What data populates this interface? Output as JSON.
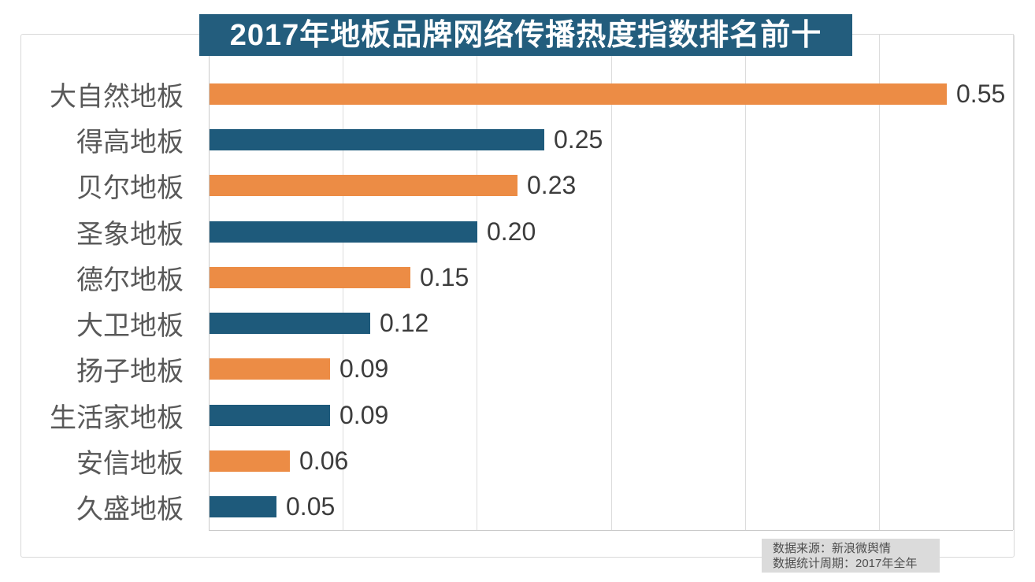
{
  "title": "2017年地板品牌网络传播热度指数排名前十",
  "source_note": {
    "line1": "数据来源：新浪微舆情",
    "line2": "数据统计周期：2017年全年"
  },
  "colors": {
    "orange": "#EC8C45",
    "blue": "#1E5A7B",
    "title_bg": "#235D7D",
    "note_bg": "#DBDBDB",
    "grid": "#DCDCDC",
    "axis": "#C9C9C9",
    "category_label": "#595959",
    "value_label": "#3C3C3C"
  },
  "chart_data": {
    "type": "bar",
    "orientation": "horizontal",
    "title": "2017年地板品牌网络传播热度指数排名前十",
    "categories": [
      "大自然地板",
      "得高地板",
      "贝尔地板",
      "圣象地板",
      "德尔地板",
      "大卫地板",
      "扬子地板",
      "生活家地板",
      "安信地板",
      "久盛地板"
    ],
    "values": [
      0.55,
      0.25,
      0.23,
      0.2,
      0.15,
      0.12,
      0.09,
      0.09,
      0.06,
      0.05
    ],
    "rows": [
      {
        "brand": "大自然地板",
        "value": 0.55,
        "value_label": "0.55",
        "color": "orange"
      },
      {
        "brand": "得高地板",
        "value": 0.25,
        "value_label": "0.25",
        "color": "blue"
      },
      {
        "brand": "贝尔地板",
        "value": 0.23,
        "value_label": "0.23",
        "color": "orange"
      },
      {
        "brand": "圣象地板",
        "value": 0.2,
        "value_label": "0.20",
        "color": "blue"
      },
      {
        "brand": "德尔地板",
        "value": 0.15,
        "value_label": "0.15",
        "color": "orange"
      },
      {
        "brand": "大卫地板",
        "value": 0.12,
        "value_label": "0.12",
        "color": "blue"
      },
      {
        "brand": "扬子地板",
        "value": 0.09,
        "value_label": "0.09",
        "color": "orange"
      },
      {
        "brand": "生活家地板",
        "value": 0.09,
        "value_label": "0.09",
        "color": "blue"
      },
      {
        "brand": "安信地板",
        "value": 0.06,
        "value_label": "0.06",
        "color": "orange"
      },
      {
        "brand": "久盛地板",
        "value": 0.05,
        "value_label": "0.05",
        "color": "blue"
      }
    ],
    "xlim": [
      0,
      0.6
    ],
    "grid_interval": 0.1,
    "grid": true,
    "xlabel": "",
    "ylabel": "",
    "legend": false,
    "value_labels_shown": true
  }
}
